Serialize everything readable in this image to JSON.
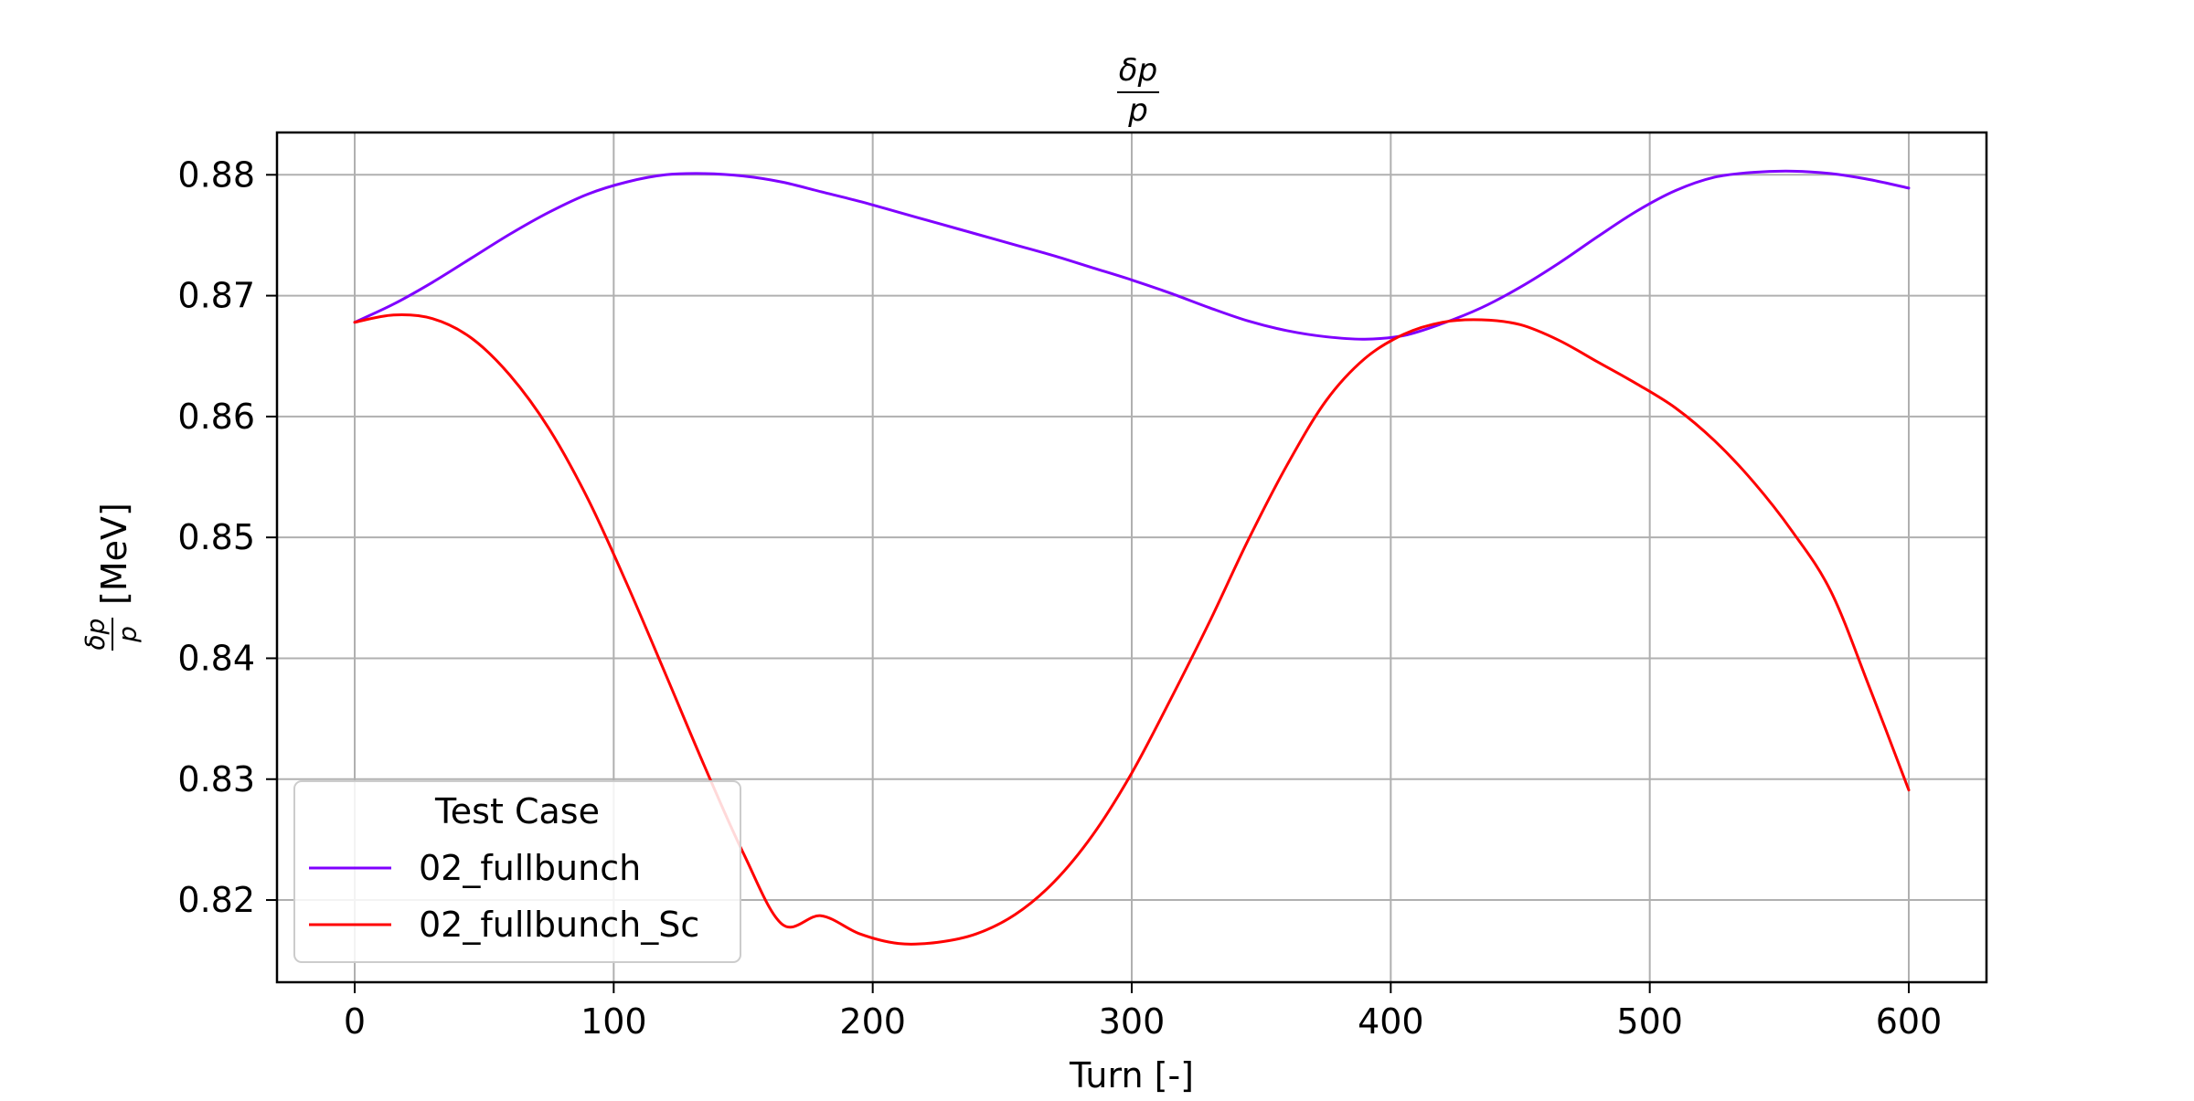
{
  "chart_data": {
    "type": "line",
    "title": {
      "num": "δp",
      "den": "p"
    },
    "xlabel": "Turn [-]",
    "ylabel": {
      "num": "δp",
      "den": "p",
      "unit": "[MeV]"
    },
    "xlim": [
      -30,
      630
    ],
    "ylim": [
      0.8132,
      0.8835
    ],
    "xticks": [
      0,
      100,
      200,
      300,
      400,
      500,
      600
    ],
    "yticks": [
      0.82,
      0.83,
      0.84,
      0.85,
      0.86,
      0.87,
      0.88
    ],
    "xtick_labels": [
      "0",
      "100",
      "200",
      "300",
      "400",
      "500",
      "600"
    ],
    "ytick_labels": [
      "0.82",
      "0.83",
      "0.84",
      "0.85",
      "0.86",
      "0.87",
      "0.88"
    ],
    "grid": true,
    "legend": {
      "title": "Test Case",
      "placement": "lower-left"
    },
    "x": [
      0,
      15,
      30,
      45,
      60,
      75,
      90,
      105,
      120,
      135,
      150,
      165,
      180,
      195,
      210,
      225,
      240,
      255,
      270,
      285,
      300,
      315,
      330,
      345,
      360,
      375,
      390,
      405,
      420,
      435,
      450,
      465,
      480,
      495,
      510,
      525,
      540,
      555,
      570,
      585,
      600
    ],
    "series": [
      {
        "name": "02_fullbunch",
        "color": "#7f00ff",
        "values": [
          0.8678,
          0.8693,
          0.8711,
          0.8731,
          0.8751,
          0.8769,
          0.8784,
          0.8794,
          0.88,
          0.8801,
          0.8799,
          0.8794,
          0.8786,
          0.8778,
          0.8769,
          0.876,
          0.8751,
          0.8742,
          0.8733,
          0.8723,
          0.8713,
          0.8702,
          0.869,
          0.8679,
          0.8671,
          0.8666,
          0.8664,
          0.8667,
          0.8677,
          0.869,
          0.8707,
          0.8727,
          0.8749,
          0.877,
          0.8787,
          0.8798,
          0.8802,
          0.8803,
          0.8801,
          0.8796,
          0.8789
        ]
      },
      {
        "name": "02_fullbunch_Sc",
        "color": "#ff0000",
        "values": [
          0.8678,
          0.8684,
          0.8681,
          0.8665,
          0.8634,
          0.859,
          0.8532,
          0.8462,
          0.8387,
          0.8311,
          0.8239,
          0.818,
          0.8187,
          0.8172,
          0.8164,
          0.8165,
          0.8172,
          0.8188,
          0.8215,
          0.8254,
          0.8305,
          0.8366,
          0.843,
          0.8498,
          0.856,
          0.8613,
          0.8648,
          0.8668,
          0.8678,
          0.868,
          0.8676,
          0.8663,
          0.8645,
          0.8627,
          0.8607,
          0.858,
          0.8546,
          0.8505,
          0.8455,
          0.8375,
          0.8291
        ]
      }
    ]
  }
}
